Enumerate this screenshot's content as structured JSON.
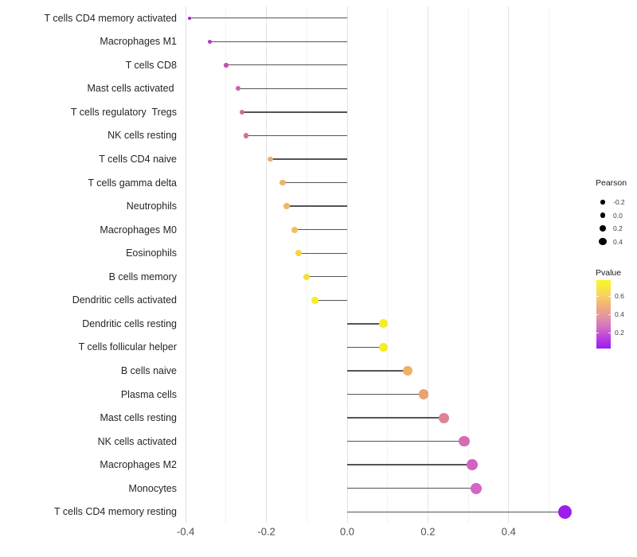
{
  "chart_data": {
    "type": "lollipop",
    "title": "",
    "xlabel": "",
    "ylabel": "",
    "x_tick_labels": [
      "-0.4",
      "-0.2",
      "0.0",
      "0.2",
      "0.4"
    ],
    "x_tick_values": [
      -0.4,
      -0.2,
      0.0,
      0.2,
      0.4
    ],
    "x_minor_values": [
      -0.3,
      -0.1,
      0.1,
      0.3,
      0.5
    ],
    "xlim": [
      -0.43,
      0.57
    ],
    "grid": "vertical only, white panel background",
    "points": [
      {
        "label": "T cells CD4 memory activated",
        "pearson": -0.39,
        "pvalue": 0.1,
        "color": "#a928cd"
      },
      {
        "label": "Macrophages M1",
        "pearson": -0.34,
        "pvalue": 0.15,
        "color": "#ba3ac3"
      },
      {
        "label": "T cells CD8",
        "pearson": -0.3,
        "pvalue": 0.25,
        "color": "#c550a9"
      },
      {
        "label": "Mast cells activated ",
        "pearson": -0.27,
        "pvalue": 0.28,
        "color": "#cb62a4"
      },
      {
        "label": "T cells regulatory  Tregs",
        "pearson": -0.26,
        "pvalue": 0.3,
        "color": "#ce6ba0"
      },
      {
        "label": "NK cells resting",
        "pearson": -0.25,
        "pvalue": 0.32,
        "color": "#d0719d"
      },
      {
        "label": "T cells CD4 naive",
        "pearson": -0.19,
        "pvalue": 0.52,
        "color": "#efab67"
      },
      {
        "label": "T cells gamma delta",
        "pearson": -0.16,
        "pvalue": 0.55,
        "color": "#edb46a"
      },
      {
        "label": "Neutrophils",
        "pearson": -0.15,
        "pvalue": 0.57,
        "color": "#eeba66"
      },
      {
        "label": "Macrophages M0",
        "pearson": -0.13,
        "pvalue": 0.6,
        "color": "#f0c161"
      },
      {
        "label": "Eosinophils",
        "pearson": -0.12,
        "pvalue": 0.64,
        "color": "#f5d44a"
      },
      {
        "label": "B cells memory",
        "pearson": -0.1,
        "pvalue": 0.66,
        "color": "#f6dc41"
      },
      {
        "label": "Dendritic cells activated",
        "pearson": -0.08,
        "pvalue": 0.73,
        "color": "#f8ee27"
      },
      {
        "label": "Dendritic cells resting",
        "pearson": 0.09,
        "pvalue": 0.72,
        "color": "#f6ed22"
      },
      {
        "label": "T cells follicular helper",
        "pearson": 0.09,
        "pvalue": 0.72,
        "color": "#f6ed22"
      },
      {
        "label": "B cells naive",
        "pearson": 0.15,
        "pvalue": 0.55,
        "color": "#edb064"
      },
      {
        "label": "Plasma cells",
        "pearson": 0.19,
        "pvalue": 0.5,
        "color": "#eba371"
      },
      {
        "label": "Mast cells resting",
        "pearson": 0.24,
        "pvalue": 0.38,
        "color": "#dd8492"
      },
      {
        "label": "NK cells activated",
        "pearson": 0.29,
        "pvalue": 0.25,
        "color": "#d56cb3"
      },
      {
        "label": "Macrophages M2",
        "pearson": 0.31,
        "pvalue": 0.21,
        "color": "#d362c3"
      },
      {
        "label": "Monocytes",
        "pearson": 0.32,
        "pvalue": 0.21,
        "color": "#d565c8"
      },
      {
        "label": "T cells CD4 memory resting",
        "pearson": 0.54,
        "pvalue": 0.03,
        "color": "#9c1ee9"
      }
    ],
    "legend_size": {
      "title": "Pearson",
      "breaks": [
        -0.2,
        0.0,
        0.2,
        0.4
      ],
      "labels": [
        "-0.2",
        "0.0",
        "0.2",
        "0.4"
      ]
    },
    "legend_color": {
      "title": "Pvalue",
      "tick_labels": [
        "0.6",
        "0.4",
        "0.2"
      ],
      "range": [
        0.03,
        0.77
      ],
      "gradient_top_to_bottom": [
        "#fbf724",
        "#f8d85c",
        "#efab7e",
        "#e391a4",
        "#d26cc4",
        "#b93fe0",
        "#9b1bf1"
      ]
    }
  },
  "style": {
    "stem_color": "#545454",
    "grid_major": "#e3e3e3",
    "grid_minor": "#f3f3f3",
    "axis_text_color": "#4d4d4d",
    "category_text_color": "#262626"
  }
}
